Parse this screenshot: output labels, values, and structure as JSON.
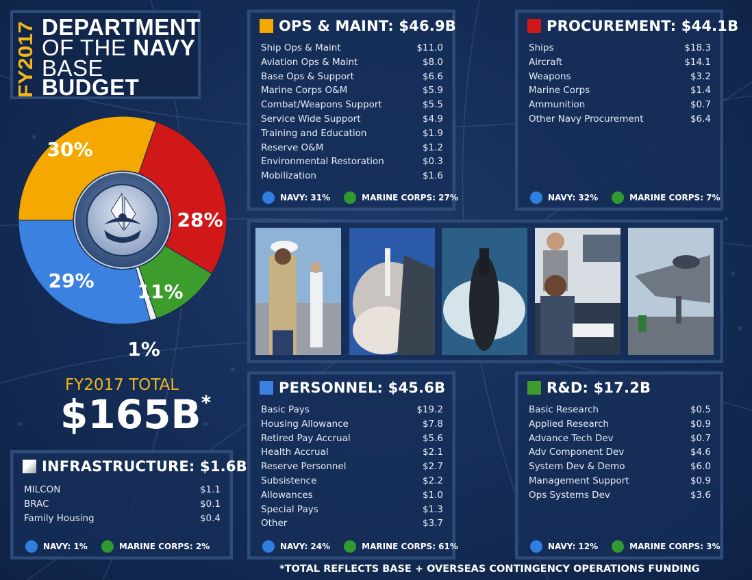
{
  "title": {
    "fy": "FY2017",
    "line1": "DEPARTMENT",
    "line2a": "OF THE ",
    "line2b": "NAVY",
    "line3": "BASE",
    "line4": "BUDGET"
  },
  "colors": {
    "ops": "#f5a800",
    "procurement": "#d01818",
    "personnel": "#3b82e0",
    "rd": "#3c9c2c",
    "infrastructure": "#f2f2f2",
    "navy_dot": "#2f7fe0",
    "marine_dot": "#2f9a2f",
    "gold": "#f0b71a"
  },
  "donut": {
    "seal_alt": "DEPARTMENT OF THE NAVY · UNITED STATES OF AMERICA",
    "slices": [
      {
        "name": "ops",
        "value": 30,
        "label": "30%"
      },
      {
        "name": "procurement",
        "value": 28,
        "label": "28%"
      },
      {
        "name": "rd",
        "value": 11,
        "label": "11%"
      },
      {
        "name": "infrastructure",
        "value": 1,
        "label": "1%"
      },
      {
        "name": "personnel",
        "value": 29,
        "label": "29%"
      }
    ]
  },
  "total": {
    "label": "FY2017 TOTAL",
    "value": "$165B",
    "asterisk": "*"
  },
  "ops": {
    "title": "OPS & MAINT: $46.9B",
    "items": [
      {
        "name": "Ship Ops & Maint",
        "value": "$11.0"
      },
      {
        "name": "Aviation Ops & Maint",
        "value": "$8.0"
      },
      {
        "name": "Base Ops & Support",
        "value": "$6.6"
      },
      {
        "name": "Marine Corps O&M",
        "value": "$5.9"
      },
      {
        "name": "Combat/Weapons Support",
        "value": "$5.5"
      },
      {
        "name": "Service Wide Support",
        "value": "$4.9"
      },
      {
        "name": "Training and Education",
        "value": "$1.9"
      },
      {
        "name": "Reserve O&M",
        "value": "$1.2"
      },
      {
        "name": "Environmental Restoration",
        "value": "$0.3"
      },
      {
        "name": "Mobilization",
        "value": "$1.6"
      }
    ],
    "navy": "NAVY: 31%",
    "marine": "MARINE CORPS: 27%"
  },
  "procurement": {
    "title": "PROCUREMENT: $44.1B",
    "items": [
      {
        "name": "Ships",
        "value": "$18.3"
      },
      {
        "name": "Aircraft",
        "value": "$14.1"
      },
      {
        "name": "Weapons",
        "value": "$3.2"
      },
      {
        "name": "Marine Corps",
        "value": "$1.4"
      },
      {
        "name": "Ammunition",
        "value": "$0.7"
      },
      {
        "name": "Other Navy Procurement",
        "value": "$6.4"
      }
    ],
    "navy": "NAVY: 32%",
    "marine": "MARINE CORPS: 7%"
  },
  "personnel": {
    "title": "PERSONNEL: $45.6B",
    "items": [
      {
        "name": "Basic Pays",
        "value": "$19.2"
      },
      {
        "name": "Housing Allowance",
        "value": "$7.8"
      },
      {
        "name": "Retired Pay Accrual",
        "value": "$5.6"
      },
      {
        "name": "Health Accrual",
        "value": "$2.1"
      },
      {
        "name": "Reserve Personnel",
        "value": "$2.7"
      },
      {
        "name": "Subsistence",
        "value": "$2.2"
      },
      {
        "name": "Allowances",
        "value": "$1.0"
      },
      {
        "name": "Special Pays",
        "value": "$1.3"
      },
      {
        "name": "Other",
        "value": "$3.7"
      }
    ],
    "navy": "NAVY: 24%",
    "marine": "MARINE CORPS: 61%"
  },
  "rd": {
    "title": "R&D: $17.2B",
    "items": [
      {
        "name": "Basic Research",
        "value": "$0.5"
      },
      {
        "name": "Applied Research",
        "value": "$0.9"
      },
      {
        "name": "Advance Tech Dev",
        "value": "$0.7"
      },
      {
        "name": "Adv Component Dev",
        "value": "$4.6"
      },
      {
        "name": "System Dev & Demo",
        "value": "$6.0"
      },
      {
        "name": "Management Support",
        "value": "$0.9"
      },
      {
        "name": "Ops Systems Dev",
        "value": "$3.6"
      }
    ],
    "navy": "NAVY: 12%",
    "marine": "MARINE CORPS: 3%"
  },
  "infrastructure": {
    "title": "INFRASTRUCTURE: $1.6B",
    "items": [
      {
        "name": "MILCON",
        "value": "$1.1"
      },
      {
        "name": "BRAC",
        "value": "$0.1"
      },
      {
        "name": "Family Housing",
        "value": "$0.4"
      }
    ],
    "navy": "NAVY: 1%",
    "marine": "MARINE CORPS: 2%"
  },
  "photos": [
    "marine-sailor-photo",
    "missile-launch-photo",
    "submarine-photo",
    "computer-lab-photo",
    "f35-jet-photo"
  ],
  "footnote": "*TOTAL REFLECTS BASE + OVERSEAS CONTINGENCY OPERATIONS FUNDING"
}
